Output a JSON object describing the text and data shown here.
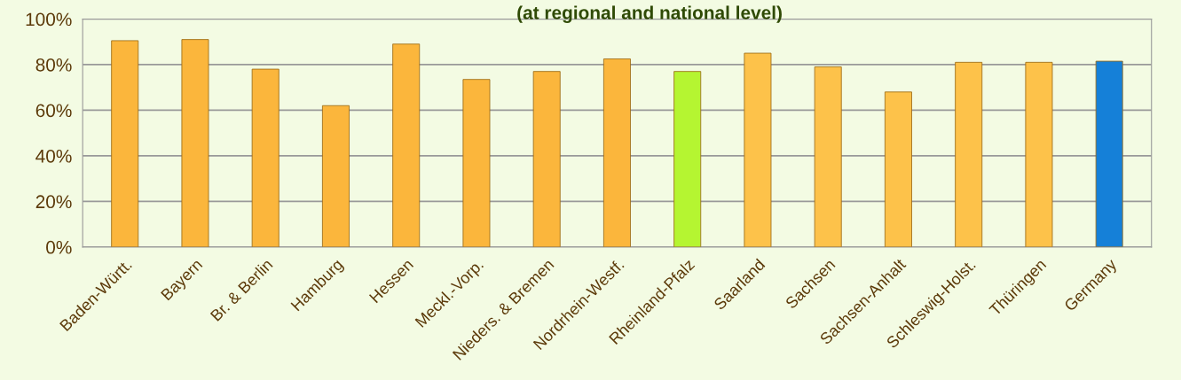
{
  "chart_data": {
    "type": "bar",
    "title": "(at regional and national level)",
    "categories": [
      "Baden-Württ.",
      "Bayern",
      "Br. & Berlin",
      "Hamburg",
      "Hessen",
      "Meckl.-Vorp.",
      "Nieders. & Bremen",
      "Nordrhein-Westf.",
      "Rheinland-Pfalz",
      "Saarland",
      "Sachsen",
      "Sachsen-Anhalt",
      "Schleswig-Holst.",
      "Thüringen",
      "Germany"
    ],
    "values": [
      90.5,
      91,
      78,
      62,
      89,
      73.5,
      77,
      82.5,
      77,
      85,
      79,
      68,
      81,
      81,
      81.5
    ],
    "colors": [
      "#fbb63c",
      "#fbb63c",
      "#fbb63c",
      "#fbb63c",
      "#fbb63c",
      "#fbb63c",
      "#fbb63c",
      "#fbb63c",
      "#b5f531",
      "#fdc24a",
      "#fdc24a",
      "#fdc24a",
      "#fdc24a",
      "#fdc24a",
      "#1580d8"
    ],
    "ylim": [
      0,
      100
    ],
    "yticks": [
      {
        "value": 0,
        "label": "0%"
      },
      {
        "value": 20,
        "label": "20%"
      },
      {
        "value": 40,
        "label": "40%"
      },
      {
        "value": 60,
        "label": "60%"
      },
      {
        "value": 80,
        "label": "80%"
      },
      {
        "value": 100,
        "label": "100%"
      }
    ],
    "grid": "y",
    "legend": false
  }
}
